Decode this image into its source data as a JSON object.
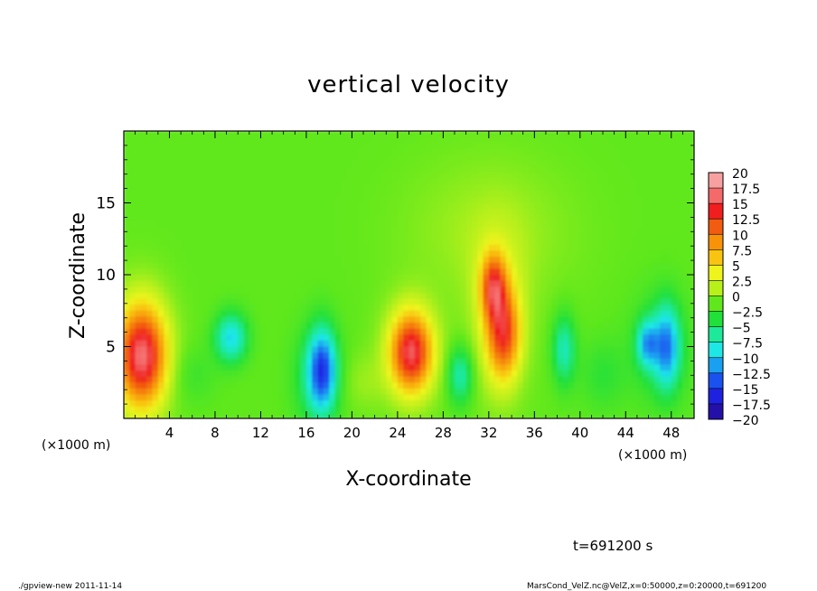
{
  "chart_data": {
    "type": "heatmap",
    "title": "vertical velocity",
    "xlabel": "X-coordinate",
    "ylabel": "Z-coordinate",
    "x_unit_left": "(×1000 m)",
    "x_unit_right": "(×1000 m)",
    "xlim": [
      0,
      50
    ],
    "ylim": [
      0,
      20
    ],
    "xticks": [
      4,
      8,
      12,
      16,
      20,
      24,
      28,
      32,
      36,
      40,
      44,
      48
    ],
    "yticks": [
      5,
      10,
      15
    ],
    "colorbar": {
      "levels": [
        "20",
        "17.5",
        "15",
        "12.5",
        "10",
        "7.5",
        "5",
        "2.5",
        "0",
        "−2.5",
        "−5",
        "−7.5",
        "−10",
        "−12.5",
        "−15",
        "−17.5",
        "−20"
      ],
      "colors": [
        "#f7a0a0",
        "#f46a6a",
        "#f01e1e",
        "#f25c10",
        "#f79209",
        "#f9c411",
        "#eef41c",
        "#b8f01a",
        "#60e81c",
        "#22e03a",
        "#1ee89a",
        "#1ee8e6",
        "#1aa0f0",
        "#1a52f0",
        "#1e22e0",
        "#2410a8",
        "#5a1aa0"
      ]
    },
    "features": [
      {
        "x": 1.6,
        "z": 4.3,
        "rx": 2.0,
        "rz": 3.3,
        "w": 12.0
      },
      {
        "x": 1.5,
        "z": 4.5,
        "rx": 2.6,
        "rz": 4.2,
        "w": 6.0
      },
      {
        "x": 9.4,
        "z": 5.6,
        "rx": 1.4,
        "rz": 1.7,
        "w": -8.0
      },
      {
        "x": 17.4,
        "z": 3.4,
        "rx": 1.2,
        "rz": 2.8,
        "w": -11.0
      },
      {
        "x": 16.9,
        "z": 2.8,
        "rx": 2.0,
        "rz": 3.4,
        "w": -4.0
      },
      {
        "x": 25.2,
        "z": 4.6,
        "rx": 1.7,
        "rz": 2.6,
        "w": 12.0
      },
      {
        "x": 25.2,
        "z": 4.6,
        "rx": 2.4,
        "rz": 3.4,
        "w": 5.0
      },
      {
        "x": 29.5,
        "z": 3.0,
        "rx": 1.1,
        "rz": 2.0,
        "w": -6.0
      },
      {
        "x": 32.4,
        "z": 9.2,
        "rx": 1.1,
        "rz": 2.3,
        "w": 11.0
      },
      {
        "x": 33.3,
        "z": 5.8,
        "rx": 1.4,
        "rz": 3.0,
        "w": 11.0
      },
      {
        "x": 32.9,
        "z": 7.0,
        "rx": 2.4,
        "rz": 5.5,
        "w": 4.0
      },
      {
        "x": 38.6,
        "z": 4.8,
        "rx": 1.0,
        "rz": 2.4,
        "w": -6.0
      },
      {
        "x": 45.9,
        "z": 5.2,
        "rx": 0.9,
        "rz": 1.6,
        "w": -8.0
      },
      {
        "x": 47.6,
        "z": 5.0,
        "rx": 1.1,
        "rz": 2.8,
        "w": -9.0
      },
      {
        "x": 47.0,
        "z": 4.8,
        "rx": 2.6,
        "rz": 3.8,
        "w": -3.0
      },
      {
        "x": 32.0,
        "z": 13.0,
        "rx": 7.0,
        "rz": 5.0,
        "w": 2.0
      },
      {
        "x": 6.0,
        "z": 3.0,
        "rx": 2.0,
        "rz": 2.0,
        "w": -1.5
      },
      {
        "x": 21.0,
        "z": 2.5,
        "rx": 2.0,
        "rz": 2.0,
        "w": 1.5
      },
      {
        "x": 42.0,
        "z": 3.0,
        "rx": 2.0,
        "rz": 2.5,
        "w": -2.0
      }
    ]
  },
  "annotations": {
    "time": "t=691200 s",
    "footer_left": "./gpview-new  2011-11-14",
    "footer_right": "MarsCond_VelZ.nc@VelZ,x=0:50000,z=0:20000,t=691200"
  }
}
